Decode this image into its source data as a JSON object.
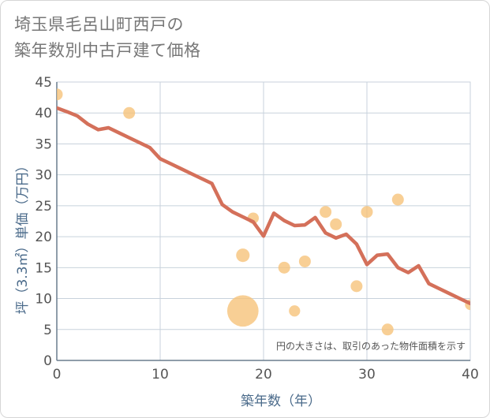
{
  "chart_data": {
    "type": "scatter",
    "title_lines": [
      "埼玉県毛呂山町西戸の",
      "築年数別中古戸建て価格"
    ],
    "xlabel": "築年数（年）",
    "ylabel": "坪（3.3㎡）単価（万円）",
    "xlim": [
      0,
      40
    ],
    "ylim": [
      0,
      45
    ],
    "x_ticks": [
      0,
      10,
      20,
      30,
      40
    ],
    "y_ticks": [
      0,
      5,
      10,
      15,
      20,
      25,
      30,
      35,
      40,
      45
    ],
    "note": "円の大きさは、取引のあった物件面積を示す",
    "colors": {
      "line": "#d4705a",
      "bubble": "#f6c37a",
      "grid": "#c8d2dc",
      "axis": "#6a7d8e"
    },
    "trend_line": {
      "name": "trend",
      "points": [
        [
          0,
          40.8
        ],
        [
          1,
          40.2
        ],
        [
          2,
          39.5
        ],
        [
          3,
          38.2
        ],
        [
          4,
          37.3
        ],
        [
          5,
          37.6
        ],
        [
          6,
          36.8
        ],
        [
          7,
          36.0
        ],
        [
          8,
          35.2
        ],
        [
          9,
          34.4
        ],
        [
          10,
          32.6
        ],
        [
          11,
          31.8
        ],
        [
          12,
          31.0
        ],
        [
          13,
          30.2
        ],
        [
          14,
          29.4
        ],
        [
          15,
          28.6
        ],
        [
          16,
          25.2
        ],
        [
          17,
          24.0
        ],
        [
          18,
          23.2
        ],
        [
          19,
          22.4
        ],
        [
          20,
          20.1
        ],
        [
          21,
          23.8
        ],
        [
          22,
          22.6
        ],
        [
          23,
          21.8
        ],
        [
          24,
          21.9
        ],
        [
          25,
          23.1
        ],
        [
          26,
          20.6
        ],
        [
          27,
          19.8
        ],
        [
          28,
          20.4
        ],
        [
          29,
          18.8
        ],
        [
          30,
          15.5
        ],
        [
          31,
          17.0
        ],
        [
          32,
          17.2
        ],
        [
          33,
          15.0
        ],
        [
          34,
          14.2
        ],
        [
          35,
          15.3
        ],
        [
          36,
          12.4
        ],
        [
          37,
          11.6
        ],
        [
          38,
          10.8
        ],
        [
          39,
          10.0
        ],
        [
          40,
          9.2
        ]
      ]
    },
    "bubbles": [
      {
        "x": 0,
        "y": 43,
        "size": 1
      },
      {
        "x": 7,
        "y": 40,
        "size": 1
      },
      {
        "x": 18,
        "y": 17,
        "size": 1.3
      },
      {
        "x": 18,
        "y": 8,
        "size": 7
      },
      {
        "x": 19,
        "y": 23,
        "size": 0.9
      },
      {
        "x": 22,
        "y": 15,
        "size": 1
      },
      {
        "x": 23,
        "y": 8,
        "size": 0.9
      },
      {
        "x": 24,
        "y": 16,
        "size": 1
      },
      {
        "x": 26,
        "y": 24,
        "size": 1
      },
      {
        "x": 27,
        "y": 22,
        "size": 1
      },
      {
        "x": 29,
        "y": 12,
        "size": 1
      },
      {
        "x": 30,
        "y": 24,
        "size": 1
      },
      {
        "x": 32,
        "y": 5,
        "size": 1
      },
      {
        "x": 33,
        "y": 26,
        "size": 1
      },
      {
        "x": 40,
        "y": 9,
        "size": 0.8
      }
    ]
  }
}
